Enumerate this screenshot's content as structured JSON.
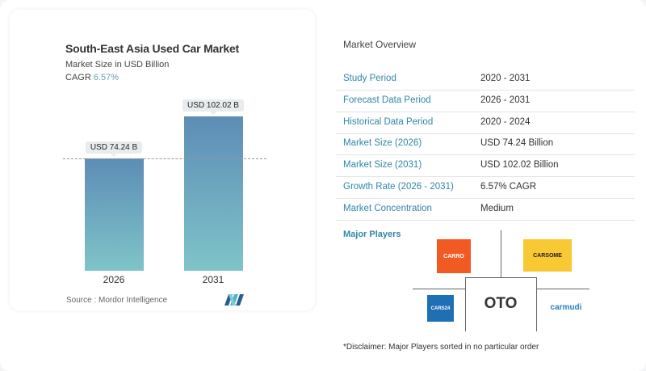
{
  "chart_data": {
    "type": "bar",
    "title": "South-East Asia Used Car Market",
    "subtitle": "Market Size in USD Billion",
    "cagr_label": "CAGR",
    "cagr_value": "6.57%",
    "categories": [
      "2026",
      "2031"
    ],
    "values": [
      74.24,
      102.02
    ],
    "data_labels": [
      "USD 74.24 B",
      "USD 102.02 B"
    ],
    "ylim": [
      0,
      102.02
    ],
    "grid": false,
    "reference_line": 74.24,
    "bar_colors": [
      "#5d8db6",
      "#7fc4c9"
    ],
    "source": "Source :  Mordor Intelligence"
  },
  "overview": {
    "title": "Market Overview",
    "rows": [
      {
        "label": "Study Period",
        "value": "2020 - 2031"
      },
      {
        "label": "Forecast Data Period",
        "value": "2026 - 2031"
      },
      {
        "label": "Historical Data Period",
        "value": "2020 - 2024"
      },
      {
        "label": "Market Size (2026)",
        "value": "USD 74.24 Billion"
      },
      {
        "label": "Market Size (2031)",
        "value": "USD 102.02 Billion"
      },
      {
        "label": "Growth Rate (2026 - 2031)",
        "value": "6.57% CAGR"
      },
      {
        "label": "Market Concentration",
        "value": "Medium"
      }
    ]
  },
  "players": {
    "title": "Major Players",
    "logos": [
      "CARRO",
      "CARSOME",
      "OTO",
      "CARS24",
      "carmudi"
    ],
    "disclaimer": "*Disclaimer: Major Players sorted in no particular order"
  },
  "colors": {
    "accent": "#2f87a6",
    "carro": "#f25a24",
    "carsome": "#f9c934",
    "cars24": "#1f6fb5",
    "carmudi": "#2a7fc1"
  }
}
